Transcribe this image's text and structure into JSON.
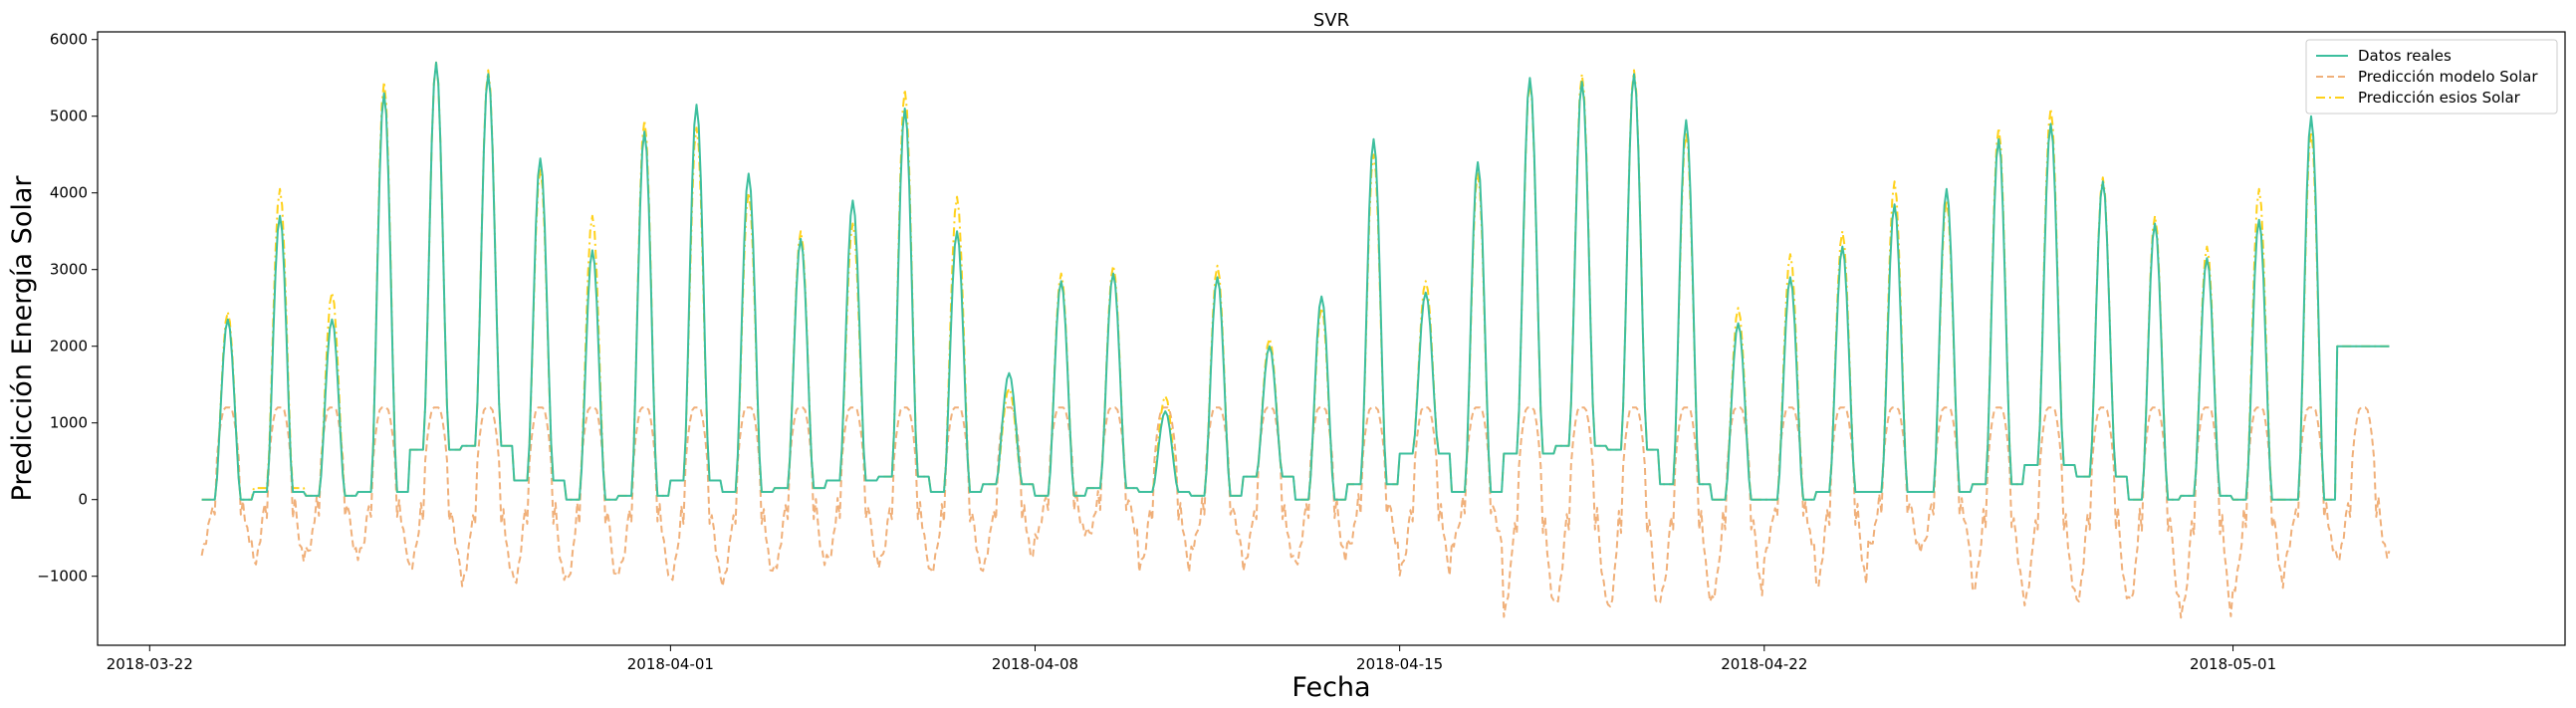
{
  "chart_data": {
    "type": "line",
    "title": "SVR",
    "xlabel": "Fecha",
    "ylabel": "Predicción Energía Solar",
    "x_range": [
      "2018-03-21T00:00",
      "2018-05-07T09:00"
    ],
    "ylim": [
      -1900,
      6100
    ],
    "x_ticks": [
      "2018-03-22",
      "2018-04-01",
      "2018-04-08",
      "2018-04-15",
      "2018-04-22",
      "2018-05-01"
    ],
    "y_ticks": [
      -1000,
      0,
      1000,
      2000,
      3000,
      4000,
      5000,
      6000
    ],
    "y_tick_labels": [
      "−1000",
      "0",
      "1000",
      "2000",
      "3000",
      "4000",
      "5000",
      "6000"
    ],
    "grid": false,
    "legend_position": "top-right",
    "data_start": "2018-03-23T00:00",
    "data_end": "2018-05-04T00:00",
    "series": [
      {
        "name": "Datos reales",
        "color": "#3dbf9e",
        "style": "solid",
        "daily_peaks": [
          2350,
          3700,
          2350,
          5300,
          5700,
          5550,
          4450,
          3250,
          4800,
          5150,
          4250,
          3400,
          3900,
          5100,
          3500,
          1650,
          2850,
          2950,
          1150,
          2900,
          2000,
          2650,
          4700,
          2700,
          4400,
          5500,
          5450,
          5550,
          4950,
          2300,
          2900,
          3300,
          3850,
          4050,
          4700,
          4900,
          4150,
          3600,
          3150,
          3650,
          5000
        ],
        "daily_night_values": [
          0,
          100,
          50,
          100,
          650,
          700,
          250,
          0,
          50,
          250,
          100,
          150,
          250,
          300,
          100,
          200,
          50,
          150,
          100,
          50,
          300,
          0,
          200,
          600,
          100,
          600,
          700,
          650,
          200,
          0,
          0,
          100,
          100,
          100,
          200,
          450,
          300,
          0,
          50,
          0,
          0
        ]
      },
      {
        "name": "Predicción modelo Solar",
        "color": "#f0b07a",
        "style": "dashed",
        "day_plateau": 1200,
        "daily_night_minimums": [
          -650,
          -800,
          -700,
          -750,
          -900,
          -1050,
          -1050,
          -1050,
          -950,
          -1050,
          -1050,
          -850,
          -800,
          -850,
          -950,
          -850,
          -450,
          -450,
          -900,
          -650,
          -850,
          -800,
          -600,
          -950,
          -600,
          -1450,
          -1300,
          -1450,
          -1300,
          -1300,
          -700,
          -1100,
          -600,
          -650,
          -1200,
          -1300,
          -1300,
          -1350,
          -1500,
          -1200,
          -750
        ]
      },
      {
        "name": "Predicción esios Solar",
        "color": "#ffd11a",
        "style": "dashdot",
        "daily_peaks": [
          2450,
          4050,
          2700,
          5450,
          5700,
          5600,
          4300,
          3700,
          4950,
          4850,
          4000,
          3500,
          3600,
          5350,
          3950,
          1450,
          2950,
          3050,
          1350,
          3050,
          2100,
          2500,
          4500,
          2850,
          4250,
          5450,
          5550,
          5600,
          4800,
          2500,
          3200,
          3500,
          4150,
          3900,
          4850,
          5100,
          4200,
          3700,
          3300,
          4050,
          4800
        ],
        "daily_night_values": [
          0,
          150,
          50,
          100,
          650,
          700,
          250,
          0,
          50,
          250,
          100,
          150,
          250,
          300,
          100,
          200,
          50,
          150,
          100,
          50,
          300,
          0,
          200,
          600,
          100,
          600,
          700,
          650,
          200,
          0,
          0,
          100,
          100,
          100,
          200,
          450,
          300,
          0,
          50,
          0,
          0
        ]
      }
    ]
  }
}
